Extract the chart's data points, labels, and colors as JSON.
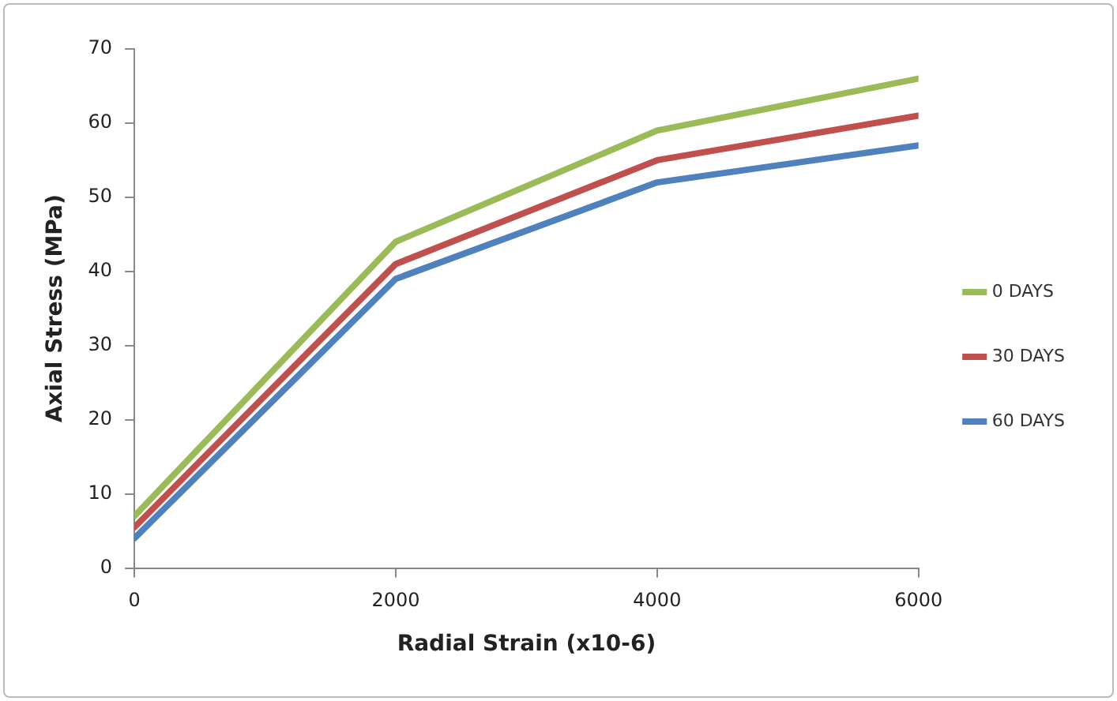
{
  "chart_data": {
    "type": "line",
    "xlabel": "Radial Strain (x10-6)",
    "ylabel": "Axial Stress (MPa)",
    "x": [
      0,
      2000,
      4000,
      6000
    ],
    "series": [
      {
        "name": "0 DAYS",
        "color": "#9bbb59",
        "values": [
          7,
          44,
          59,
          66
        ]
      },
      {
        "name": "30 DAYS",
        "color": "#c0504d",
        "values": [
          5.5,
          41,
          55,
          61
        ]
      },
      {
        "name": "60 DAYS",
        "color": "#4f81bd",
        "values": [
          4,
          39,
          52,
          57
        ]
      }
    ],
    "xlim": [
      0,
      6000
    ],
    "xticks": [
      0,
      2000,
      4000,
      6000
    ],
    "ylim": [
      0,
      70
    ],
    "yticks": [
      0,
      10,
      20,
      30,
      40,
      50,
      60,
      70
    ],
    "grid": false,
    "legend": "right",
    "marker": "none",
    "line_style": "solid"
  }
}
